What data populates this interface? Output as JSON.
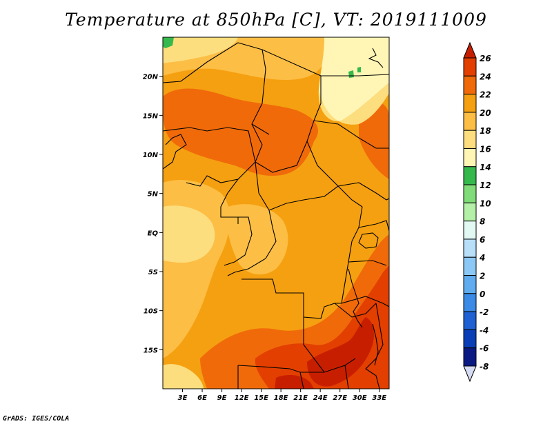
{
  "title": "Temperature at 850hPa [C], VT: 2019111009",
  "credit": "GrADS: IGES/COLA",
  "map": {
    "lon_range": [
      0,
      34.5
    ],
    "lat_range": [
      -20,
      25
    ],
    "lat_ticks": [
      {
        "value": 20,
        "label": "20N"
      },
      {
        "value": 15,
        "label": "15N"
      },
      {
        "value": 10,
        "label": "10N"
      },
      {
        "value": 5,
        "label": "5N"
      },
      {
        "value": 0,
        "label": "EQ"
      },
      {
        "value": -5,
        "label": "5S"
      },
      {
        "value": -10,
        "label": "10S"
      },
      {
        "value": -15,
        "label": "15S"
      }
    ],
    "lon_ticks": [
      {
        "value": 3,
        "label": "3E"
      },
      {
        "value": 6,
        "label": "6E"
      },
      {
        "value": 9,
        "label": "9E"
      },
      {
        "value": 12,
        "label": "12E"
      },
      {
        "value": 15,
        "label": "15E"
      },
      {
        "value": 18,
        "label": "18E"
      },
      {
        "value": 21,
        "label": "21E"
      },
      {
        "value": 24,
        "label": "24E"
      },
      {
        "value": 27,
        "label": "27E"
      },
      {
        "value": 30,
        "label": "30E"
      },
      {
        "value": 33,
        "label": "33E"
      }
    ]
  },
  "colorbar": {
    "levels": [
      26,
      24,
      22,
      20,
      18,
      16,
      14,
      12,
      10,
      8,
      6,
      4,
      2,
      0,
      -2,
      -4,
      -6,
      -8
    ],
    "colors": [
      "#c81e00",
      "#e23f00",
      "#f06a0a",
      "#f5a010",
      "#fcbe45",
      "#fdde7e",
      "#fff5b5",
      "#35b84c",
      "#7fdc78",
      "#b4f0a7",
      "#e2f8f2",
      "#b8dff8",
      "#8cc8f5",
      "#60acef",
      "#3a8ae6",
      "#1f60d2",
      "#0a3eb6",
      "#0a1a82",
      "#d6dcf2"
    ]
  }
}
